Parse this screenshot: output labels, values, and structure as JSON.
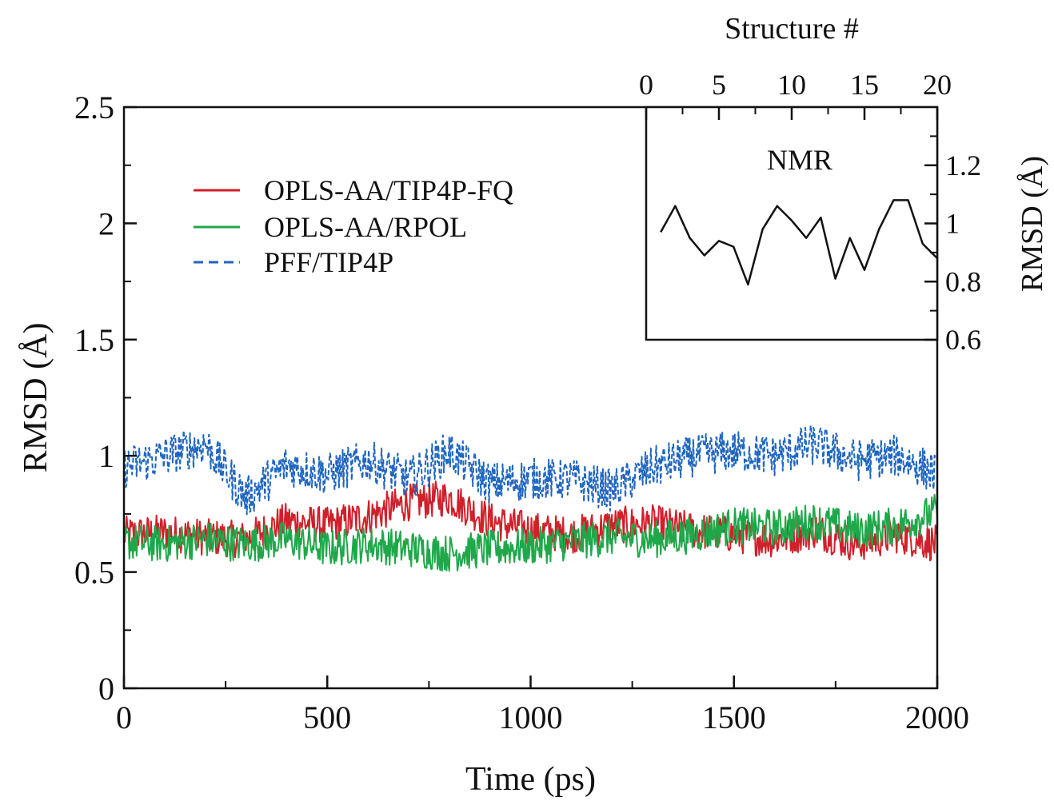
{
  "colors": {
    "tip4p_fq": "#d0202a",
    "rpol": "#1fa84a",
    "pff_tip4p": "#1f66c0",
    "nmr": "#111111",
    "axis": "#111111"
  },
  "chart_data": [
    {
      "type": "line",
      "xlabel": "Time (ps)",
      "ylabel": "RMSD (Å)",
      "xlim": [
        0,
        2000
      ],
      "ylim": [
        0,
        2.5
      ],
      "x_ticks": [
        0,
        500,
        1000,
        1500,
        2000
      ],
      "x_tick_labels": [
        "0",
        "500",
        "1000",
        "1500",
        "2000"
      ],
      "y_ticks": [
        0,
        0.5,
        1,
        1.5,
        2,
        2.5
      ],
      "y_tick_labels": [
        "0",
        "0.5",
        "1",
        "1.5",
        "2",
        "2.5"
      ],
      "grid": false,
      "legend_position": "upper-left",
      "x": [
        0,
        100,
        200,
        300,
        400,
        500,
        600,
        700,
        800,
        900,
        1000,
        1100,
        1200,
        1300,
        1400,
        1500,
        1600,
        1700,
        1800,
        1900,
        2000
      ],
      "series": [
        {
          "name": "OPLS-AA/TIP4P-FQ",
          "color": "#d0202a",
          "style": "solid",
          "values": [
            0.66,
            0.67,
            0.65,
            0.64,
            0.72,
            0.7,
            0.74,
            0.8,
            0.82,
            0.72,
            0.68,
            0.66,
            0.7,
            0.71,
            0.68,
            0.66,
            0.64,
            0.68,
            0.62,
            0.66,
            0.62
          ]
        },
        {
          "name": "OPLS-AA/RPOL",
          "color": "#1fa84a",
          "style": "solid",
          "values": [
            0.63,
            0.62,
            0.64,
            0.62,
            0.64,
            0.6,
            0.62,
            0.6,
            0.58,
            0.6,
            0.61,
            0.63,
            0.65,
            0.64,
            0.66,
            0.7,
            0.69,
            0.72,
            0.68,
            0.7,
            0.76
          ]
        },
        {
          "name": "PFF/TIP4P",
          "color": "#1f66c0",
          "style": "dashed",
          "values": [
            0.95,
            1.0,
            1.05,
            0.82,
            0.96,
            0.92,
            0.98,
            0.9,
            1.02,
            0.88,
            0.9,
            0.9,
            0.85,
            0.95,
            1.0,
            1.02,
            1.0,
            1.05,
            0.98,
            1.0,
            0.92
          ]
        }
      ]
    },
    {
      "type": "line",
      "annotation": "NMR",
      "xlabel": "Structure #",
      "ylabel": "RMSD (Å)",
      "xlim": [
        0,
        20
      ],
      "ylim": [
        0.6,
        1.4
      ],
      "x_ticks": [
        0,
        5,
        10,
        15,
        20
      ],
      "x_tick_labels": [
        "0",
        "5",
        "10",
        "15",
        "20"
      ],
      "y_ticks": [
        0.6,
        0.8,
        1.0,
        1.2
      ],
      "y_tick_labels": [
        "0.6",
        "0.8",
        "1",
        "1.2"
      ],
      "position": "upper-right",
      "series": [
        {
          "color": "#111111",
          "x": [
            1,
            2,
            3,
            4,
            5,
            6,
            7,
            8,
            9,
            10,
            11,
            12,
            13,
            14,
            15,
            16,
            17,
            18,
            19,
            20
          ],
          "values": [
            0.97,
            1.06,
            0.95,
            0.89,
            0.94,
            0.92,
            0.79,
            0.98,
            1.06,
            1.01,
            0.95,
            1.02,
            0.81,
            0.95,
            0.84,
            0.98,
            1.08,
            1.08,
            0.93,
            0.88
          ]
        }
      ]
    }
  ]
}
